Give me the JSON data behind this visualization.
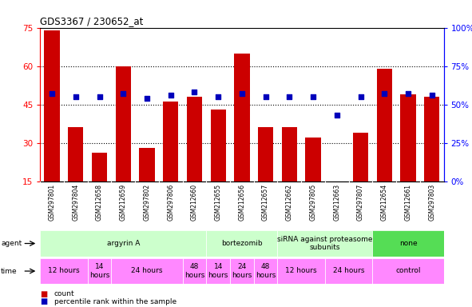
{
  "title": "GDS3367 / 230652_at",
  "samples": [
    "GSM297801",
    "GSM297804",
    "GSM212658",
    "GSM212659",
    "GSM297802",
    "GSM297806",
    "GSM212660",
    "GSM212655",
    "GSM212656",
    "GSM212657",
    "GSM212662",
    "GSM297805",
    "GSM212663",
    "GSM297807",
    "GSM212654",
    "GSM212661",
    "GSM297803"
  ],
  "counts": [
    74,
    36,
    26,
    60,
    28,
    46,
    48,
    43,
    65,
    36,
    36,
    32,
    15,
    34,
    59,
    49,
    48
  ],
  "percentiles": [
    57,
    55,
    55,
    57,
    54,
    56,
    58,
    55,
    57,
    55,
    55,
    55,
    43,
    55,
    57,
    57,
    56
  ],
  "ymin": 15,
  "ymax": 75,
  "yticks": [
    15,
    30,
    45,
    60,
    75
  ],
  "right_yticks": [
    0,
    25,
    50,
    75,
    100
  ],
  "right_ytick_labels": [
    "0%",
    "25%",
    "50%",
    "75%",
    "100%"
  ],
  "bar_color": "#CC0000",
  "dot_color": "#0000BB",
  "bg_color": "#C8C8C8",
  "plot_bg": "#FFFFFF",
  "agent_groups": [
    {
      "label": "argyrin A",
      "start": 0,
      "end": 7,
      "color": "#CCFFCC"
    },
    {
      "label": "bortezomib",
      "start": 7,
      "end": 10,
      "color": "#CCFFCC"
    },
    {
      "label": "siRNA against proteasome\nsubunits",
      "start": 10,
      "end": 14,
      "color": "#CCFFCC"
    },
    {
      "label": "none",
      "start": 14,
      "end": 17,
      "color": "#55DD55"
    }
  ],
  "time_groups": [
    {
      "label": "12 hours",
      "start": 0,
      "end": 2,
      "color": "#FF88FF"
    },
    {
      "label": "14\nhours",
      "start": 2,
      "end": 3,
      "color": "#FF88FF"
    },
    {
      "label": "24 hours",
      "start": 3,
      "end": 6,
      "color": "#FF88FF"
    },
    {
      "label": "48\nhours",
      "start": 6,
      "end": 7,
      "color": "#FF88FF"
    },
    {
      "label": "14\nhours",
      "start": 7,
      "end": 8,
      "color": "#FF88FF"
    },
    {
      "label": "24\nhours",
      "start": 8,
      "end": 9,
      "color": "#FF88FF"
    },
    {
      "label": "48\nhours",
      "start": 9,
      "end": 10,
      "color": "#FF88FF"
    },
    {
      "label": "12 hours",
      "start": 10,
      "end": 12,
      "color": "#FF88FF"
    },
    {
      "label": "24 hours",
      "start": 12,
      "end": 14,
      "color": "#FF88FF"
    },
    {
      "label": "control",
      "start": 14,
      "end": 17,
      "color": "#FF88FF"
    }
  ],
  "legend_count_color": "#CC0000",
  "legend_pct_color": "#0000BB"
}
